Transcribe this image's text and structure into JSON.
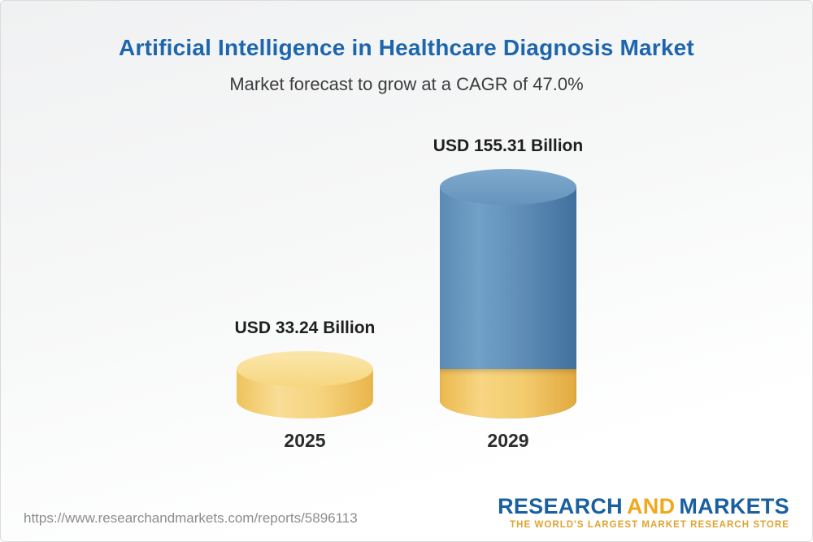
{
  "header": {
    "title": "Artificial Intelligence in Healthcare Diagnosis Market",
    "subtitle": "Market forecast to grow at a CAGR of 47.0%"
  },
  "chart_data": {
    "type": "bar",
    "title": "Artificial Intelligence in Healthcare Diagnosis Market",
    "subtitle": "Market forecast to grow at a CAGR of 47.0%",
    "cagr_percent": 47.0,
    "unit": "USD Billion",
    "categories": [
      "2025",
      "2029"
    ],
    "values": [
      33.24,
      155.31
    ],
    "value_labels": [
      "USD 33.24 Billion",
      "USD 155.31 Billion"
    ],
    "ylim": [
      0,
      155.31
    ],
    "grid": false,
    "legend": "none",
    "colors": {
      "bar_2025": "#f6d480",
      "bar_2029": "#5d8cb6",
      "bar_2029_base_band": "#f3cc6f",
      "title_text": "#1d66ad",
      "label_text": "#1f1f1f"
    }
  },
  "footer": {
    "url": "https://www.researchandmarkets.com/reports/5896113",
    "logo": {
      "part_research": "RESEARCH",
      "part_and": "AND",
      "part_markets": "MARKETS",
      "tagline": "THE WORLD'S LARGEST MARKET RESEARCH STORE"
    }
  }
}
